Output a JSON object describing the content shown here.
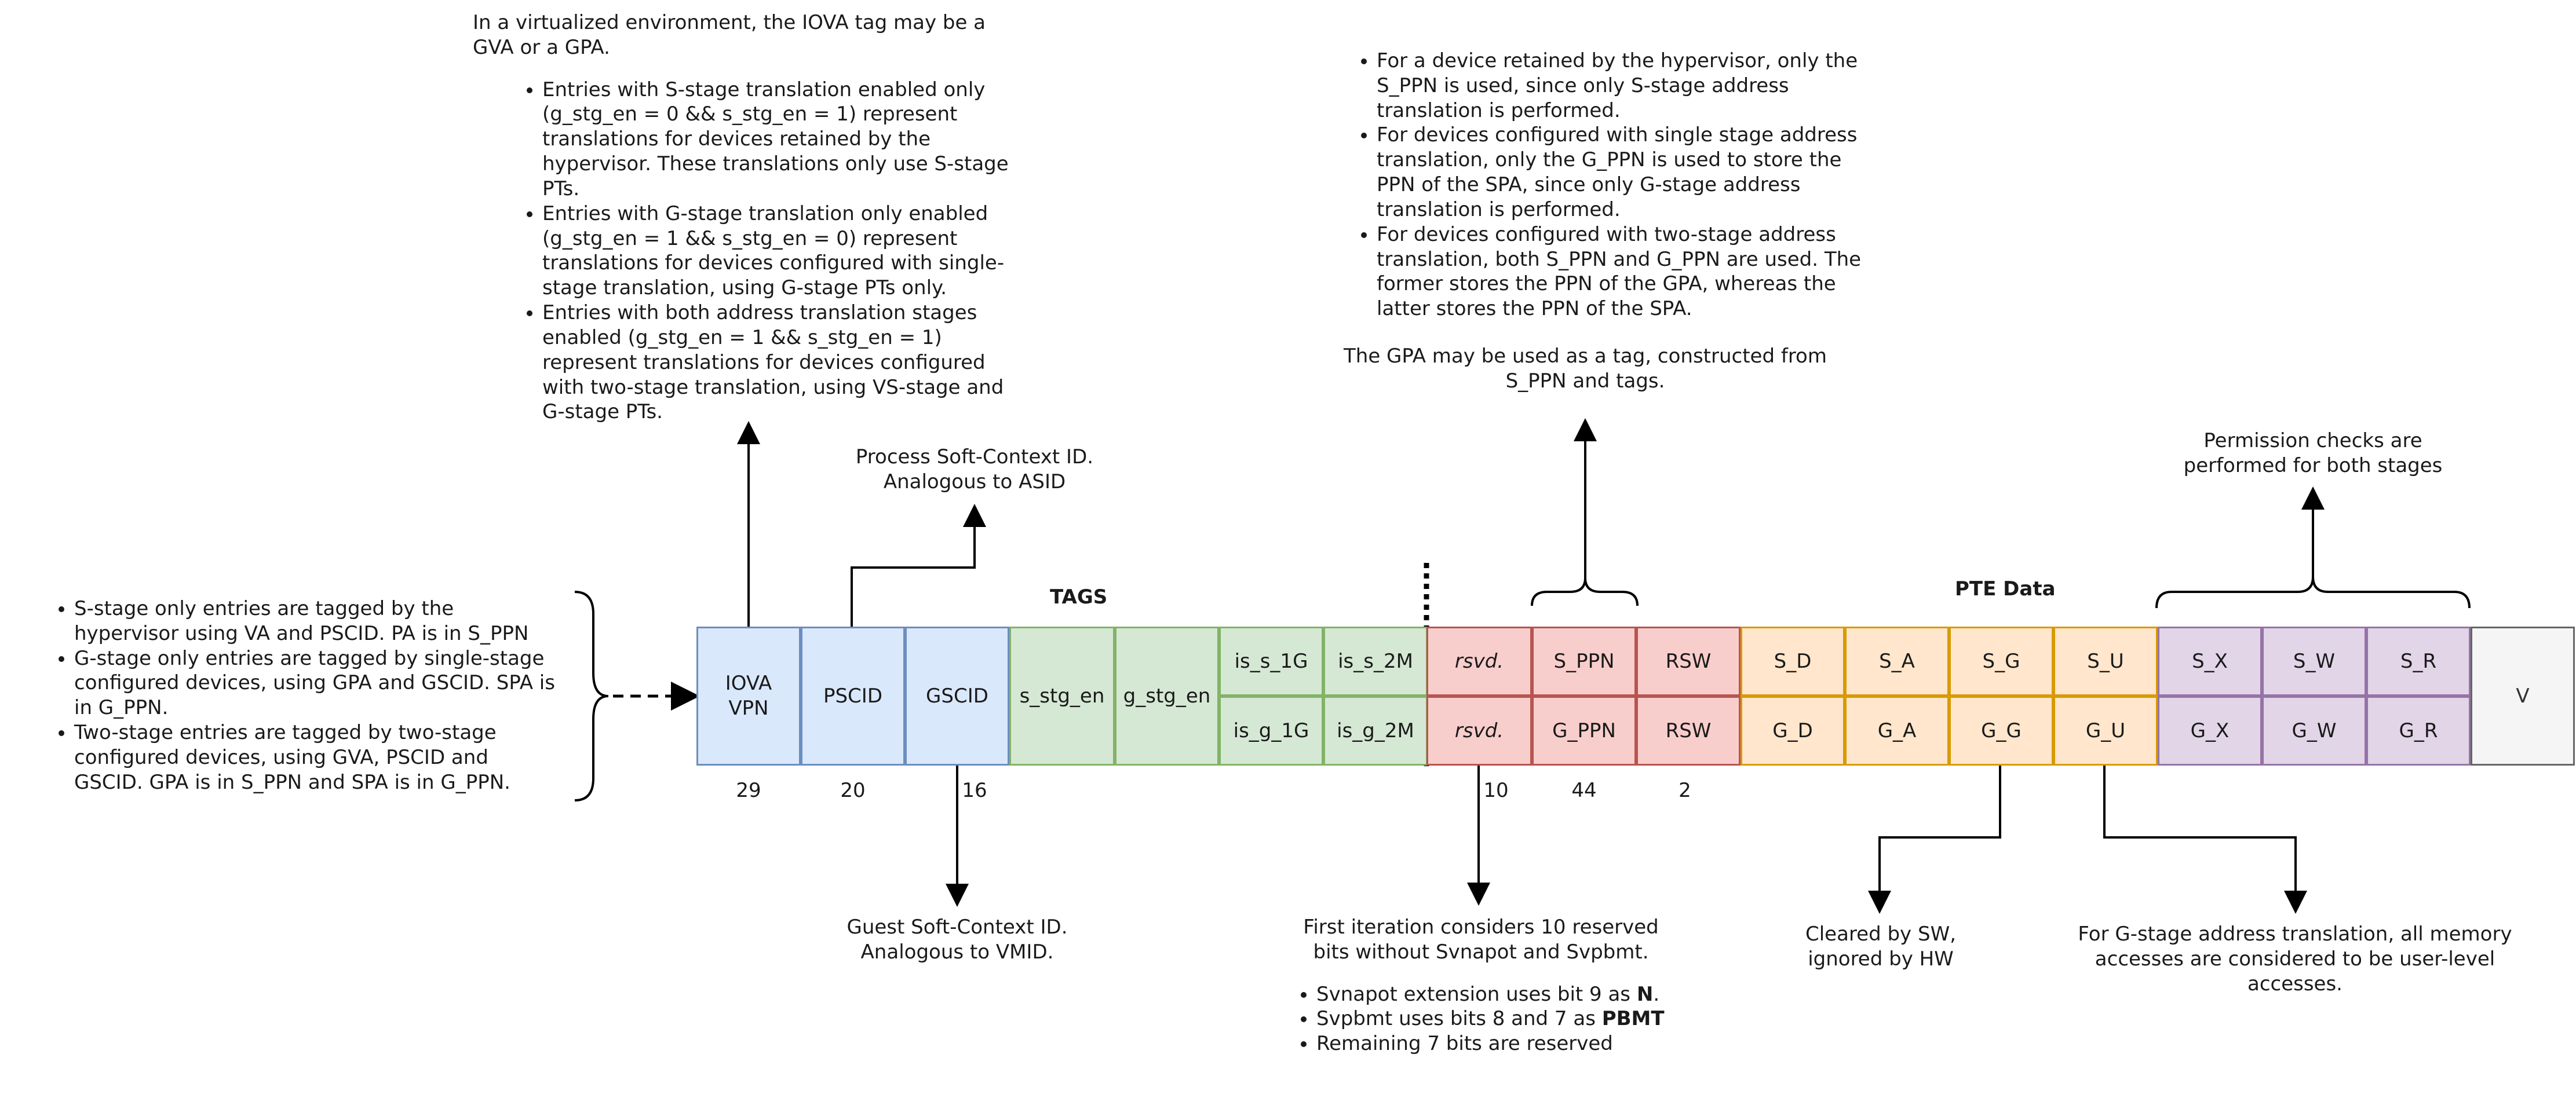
{
  "iova_note": {
    "intro": "In a virtualized environment, the IOVA tag may be a GVA or a GPA.",
    "bullets": [
      "Entries with S-stage translation enabled only (g_stg_en = 0 && s_stg_en = 1) represent translations for devices retained by the hypervisor. These translations only use S-stage PTs.",
      "Entries with G-stage translation only enabled (g_stg_en = 1 && s_stg_en = 0) represent translations for devices configured with single-stage translation, using G-stage PTs only.",
      "Entries with both address translation stages enabled (g_stg_en = 1 && s_stg_en = 1) represent translations for devices configured with two-stage translation, using VS-stage and G-stage PTs."
    ]
  },
  "ppn_note": {
    "bullets": [
      "For a device retained by the hypervisor, only the S_PPN is used, since only S-stage address translation is performed.",
      "For devices configured with single stage address translation, only the G_PPN is used to store the PPN of the SPA, since only G-stage address translation is performed.",
      "For devices configured with two-stage address translation, both S_PPN and G_PPN are used. The former stores the  PPN of the GPA, whereas the latter stores the PPN of the SPA."
    ],
    "footer": "The GPA may be used as a tag, constructed from S_PPN and tags."
  },
  "tagging_note": {
    "bullets": [
      "S-stage only entries are tagged by the hypervisor using VA and PSCID. PA is in S_PPN",
      "G-stage only entries are tagged by single-stage configured devices, using GPA and GSCID. SPA is in G_PPN.",
      "Two-stage entries are tagged by two-stage configured devices, using GVA, PSCID and GSCID. GPA is in S_PPN and SPA is in G_PPN."
    ]
  },
  "pscid_note": "Process Soft-Context ID. Analogous to ASID",
  "gscid_note": "Guest Soft-Context ID. Analogous to VMID.",
  "permission_note": "Permission checks are performed for both stages",
  "rsvd_note": {
    "intro": "First iteration considers 10 reserved bits without Svnapot and Svpbmt.",
    "bullets": [
      {
        "text": "Svnapot extension uses bit 9 as ",
        "bold": "N",
        "tail": "."
      },
      {
        "text": "Svpbmt uses bits 8 and 7 as ",
        "bold": "PBMT",
        "tail": ""
      },
      {
        "text": "Remaining 7 bits are reserved",
        "bold": "",
        "tail": ""
      }
    ]
  },
  "g_note": "Cleared by SW, ignored by HW",
  "u_note": "For G-stage address translation, all memory accesses are considered to be user-level accesses.",
  "headers": {
    "tags": "TAGS",
    "pte": "PTE Data"
  },
  "fields": {
    "iova": "IOVA VPN",
    "pscid": "PSCID",
    "gscid": "GSCID",
    "s_stg_en": "s_stg_en",
    "g_stg_en": "g_stg_en",
    "is_s_1g": "is_s_1G",
    "is_s_2m": "is_s_2M",
    "is_g_1g": "is_g_1G",
    "is_g_2m": "is_g_2M",
    "rsvd_s": "rsvd.",
    "s_ppn": "S_PPN",
    "rsw_s": "RSW",
    "rsvd_g": "rsvd.",
    "g_ppn": "G_PPN",
    "rsw_g": "RSW",
    "s_d": "S_D",
    "s_a": "S_A",
    "s_g": "S_G",
    "s_u": "S_U",
    "g_d": "G_D",
    "g_a": "G_A",
    "g_g": "G_G",
    "g_u": "G_U",
    "s_x": "S_X",
    "s_w": "S_W",
    "s_r": "S_R",
    "g_x": "G_X",
    "g_w": "G_W",
    "g_r": "G_R",
    "v": "V"
  },
  "widths": {
    "iova": "29",
    "pscid": "20",
    "gscid": "16",
    "rsvd": "10",
    "ppn": "44",
    "rsw": "2"
  }
}
